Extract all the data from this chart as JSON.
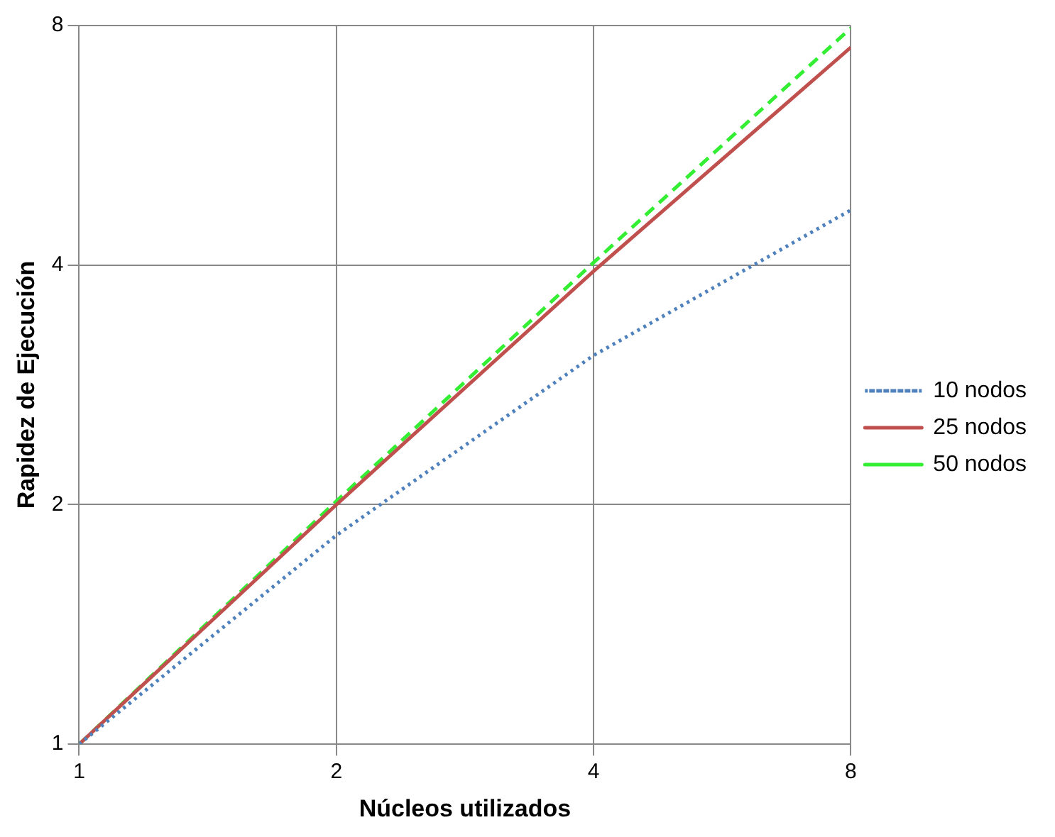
{
  "chart_data": {
    "type": "line",
    "xlabel": "Núcleos utilizados",
    "ylabel": "Rapidez de Ejecución",
    "log": "xy",
    "x": [
      1,
      2,
      4,
      8
    ],
    "xlim": [
      1,
      8
    ],
    "xticks": [
      1,
      2,
      4,
      8
    ],
    "ylim": [
      1,
      8
    ],
    "yticks": [
      1,
      2,
      4,
      8
    ],
    "grid": true,
    "legend": "right",
    "marker": "none",
    "series": [
      {
        "name": "10 nodos",
        "color": "#4f81bd",
        "line_style": "dotted",
        "values": [
          1,
          1.83,
          3.08,
          4.69
        ]
      },
      {
        "name": "25 nodos",
        "color": "#c0504d",
        "line_style": "solid",
        "values": [
          1,
          2,
          3.93,
          7.51
        ]
      },
      {
        "name": "50 nodos",
        "color": "#33ee33",
        "line_style": "dashed",
        "values": [
          1,
          2.02,
          4.03,
          7.94
        ]
      }
    ]
  }
}
